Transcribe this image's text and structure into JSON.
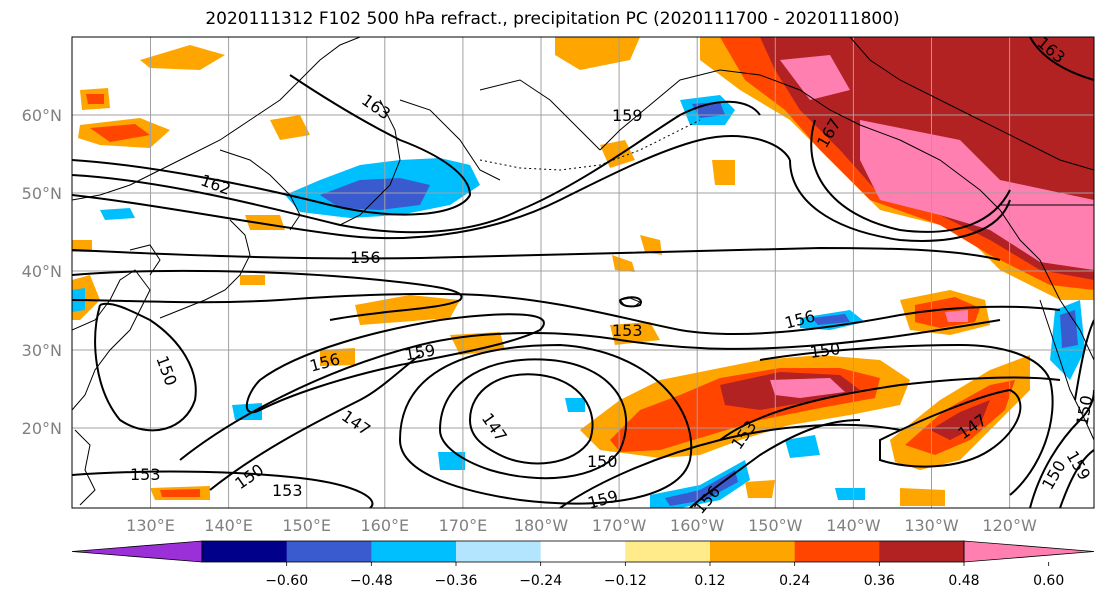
{
  "title": "2020111312 F102 500 hPa refract., precipitation PC (2020111700 - 2020111800)",
  "map": {
    "lon_labels": [
      "130°E",
      "140°E",
      "150°E",
      "160°E",
      "170°E",
      "180°W",
      "170°W",
      "160°W",
      "150°W",
      "140°W",
      "130°W",
      "120°W"
    ],
    "lat_labels": [
      "60°N",
      "50°N",
      "40°N",
      "30°N",
      "20°N"
    ],
    "contour_labels": [
      "163",
      "162",
      "159",
      "156",
      "153",
      "156",
      "159",
      "150",
      "147",
      "147",
      "150",
      "153",
      "153",
      "150",
      "147",
      "156",
      "159",
      "150",
      "153",
      "159",
      "150",
      "156",
      "150",
      "163",
      "167"
    ]
  },
  "colorbar": {
    "colors": [
      "#9b30d9",
      "#00008b",
      "#3a5ad0",
      "#00bfff",
      "#b3e5ff",
      "#ffffff",
      "#ffeb8a",
      "#ffa500",
      "#ff4500",
      "#b22222",
      "#ff80b0"
    ],
    "tick_labels": [
      "−0.60",
      "−0.48",
      "−0.36",
      "−0.24",
      "−0.12",
      "0.12",
      "0.24",
      "0.36",
      "0.48",
      "0.60"
    ]
  }
}
